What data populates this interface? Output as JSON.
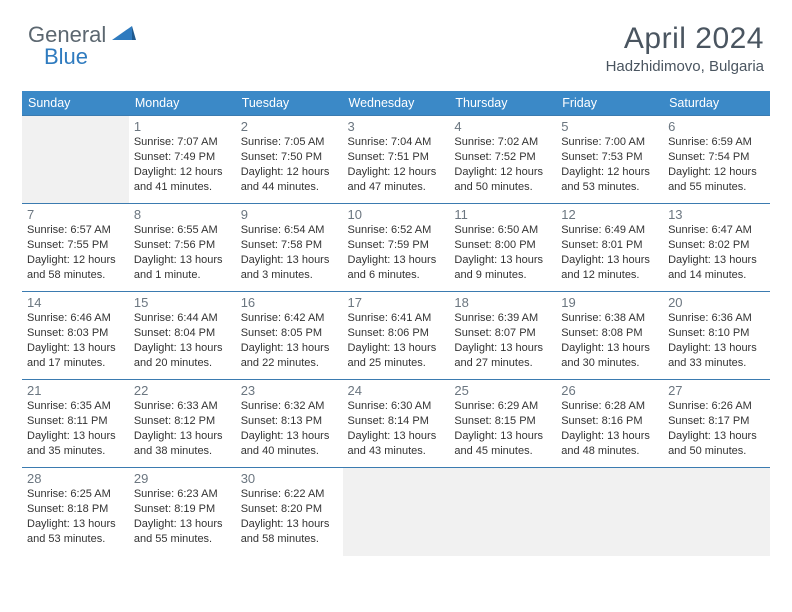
{
  "brand": {
    "part1": "General",
    "part2": "Blue"
  },
  "title": "April 2024",
  "location": "Hadzhidimovo, Bulgaria",
  "colors": {
    "header_bg": "#3b89c7",
    "border": "#3b7bb0",
    "off_bg": "#f1f1f1",
    "text": "#333333",
    "title_color": "#4a5560",
    "logo_gray": "#5c6770",
    "logo_blue": "#2f7bbf"
  },
  "weekdays": [
    "Sunday",
    "Monday",
    "Tuesday",
    "Wednesday",
    "Thursday",
    "Friday",
    "Saturday"
  ],
  "cells": [
    {
      "off": true
    },
    {
      "n": "1",
      "sr": "Sunrise: 7:07 AM",
      "ss": "Sunset: 7:49 PM",
      "d1": "Daylight: 12 hours",
      "d2": "and 41 minutes."
    },
    {
      "n": "2",
      "sr": "Sunrise: 7:05 AM",
      "ss": "Sunset: 7:50 PM",
      "d1": "Daylight: 12 hours",
      "d2": "and 44 minutes."
    },
    {
      "n": "3",
      "sr": "Sunrise: 7:04 AM",
      "ss": "Sunset: 7:51 PM",
      "d1": "Daylight: 12 hours",
      "d2": "and 47 minutes."
    },
    {
      "n": "4",
      "sr": "Sunrise: 7:02 AM",
      "ss": "Sunset: 7:52 PM",
      "d1": "Daylight: 12 hours",
      "d2": "and 50 minutes."
    },
    {
      "n": "5",
      "sr": "Sunrise: 7:00 AM",
      "ss": "Sunset: 7:53 PM",
      "d1": "Daylight: 12 hours",
      "d2": "and 53 minutes."
    },
    {
      "n": "6",
      "sr": "Sunrise: 6:59 AM",
      "ss": "Sunset: 7:54 PM",
      "d1": "Daylight: 12 hours",
      "d2": "and 55 minutes."
    },
    {
      "n": "7",
      "sr": "Sunrise: 6:57 AM",
      "ss": "Sunset: 7:55 PM",
      "d1": "Daylight: 12 hours",
      "d2": "and 58 minutes."
    },
    {
      "n": "8",
      "sr": "Sunrise: 6:55 AM",
      "ss": "Sunset: 7:56 PM",
      "d1": "Daylight: 13 hours",
      "d2": "and 1 minute."
    },
    {
      "n": "9",
      "sr": "Sunrise: 6:54 AM",
      "ss": "Sunset: 7:58 PM",
      "d1": "Daylight: 13 hours",
      "d2": "and 3 minutes."
    },
    {
      "n": "10",
      "sr": "Sunrise: 6:52 AM",
      "ss": "Sunset: 7:59 PM",
      "d1": "Daylight: 13 hours",
      "d2": "and 6 minutes."
    },
    {
      "n": "11",
      "sr": "Sunrise: 6:50 AM",
      "ss": "Sunset: 8:00 PM",
      "d1": "Daylight: 13 hours",
      "d2": "and 9 minutes."
    },
    {
      "n": "12",
      "sr": "Sunrise: 6:49 AM",
      "ss": "Sunset: 8:01 PM",
      "d1": "Daylight: 13 hours",
      "d2": "and 12 minutes."
    },
    {
      "n": "13",
      "sr": "Sunrise: 6:47 AM",
      "ss": "Sunset: 8:02 PM",
      "d1": "Daylight: 13 hours",
      "d2": "and 14 minutes."
    },
    {
      "n": "14",
      "sr": "Sunrise: 6:46 AM",
      "ss": "Sunset: 8:03 PM",
      "d1": "Daylight: 13 hours",
      "d2": "and 17 minutes."
    },
    {
      "n": "15",
      "sr": "Sunrise: 6:44 AM",
      "ss": "Sunset: 8:04 PM",
      "d1": "Daylight: 13 hours",
      "d2": "and 20 minutes."
    },
    {
      "n": "16",
      "sr": "Sunrise: 6:42 AM",
      "ss": "Sunset: 8:05 PM",
      "d1": "Daylight: 13 hours",
      "d2": "and 22 minutes."
    },
    {
      "n": "17",
      "sr": "Sunrise: 6:41 AM",
      "ss": "Sunset: 8:06 PM",
      "d1": "Daylight: 13 hours",
      "d2": "and 25 minutes."
    },
    {
      "n": "18",
      "sr": "Sunrise: 6:39 AM",
      "ss": "Sunset: 8:07 PM",
      "d1": "Daylight: 13 hours",
      "d2": "and 27 minutes."
    },
    {
      "n": "19",
      "sr": "Sunrise: 6:38 AM",
      "ss": "Sunset: 8:08 PM",
      "d1": "Daylight: 13 hours",
      "d2": "and 30 minutes."
    },
    {
      "n": "20",
      "sr": "Sunrise: 6:36 AM",
      "ss": "Sunset: 8:10 PM",
      "d1": "Daylight: 13 hours",
      "d2": "and 33 minutes."
    },
    {
      "n": "21",
      "sr": "Sunrise: 6:35 AM",
      "ss": "Sunset: 8:11 PM",
      "d1": "Daylight: 13 hours",
      "d2": "and 35 minutes."
    },
    {
      "n": "22",
      "sr": "Sunrise: 6:33 AM",
      "ss": "Sunset: 8:12 PM",
      "d1": "Daylight: 13 hours",
      "d2": "and 38 minutes."
    },
    {
      "n": "23",
      "sr": "Sunrise: 6:32 AM",
      "ss": "Sunset: 8:13 PM",
      "d1": "Daylight: 13 hours",
      "d2": "and 40 minutes."
    },
    {
      "n": "24",
      "sr": "Sunrise: 6:30 AM",
      "ss": "Sunset: 8:14 PM",
      "d1": "Daylight: 13 hours",
      "d2": "and 43 minutes."
    },
    {
      "n": "25",
      "sr": "Sunrise: 6:29 AM",
      "ss": "Sunset: 8:15 PM",
      "d1": "Daylight: 13 hours",
      "d2": "and 45 minutes."
    },
    {
      "n": "26",
      "sr": "Sunrise: 6:28 AM",
      "ss": "Sunset: 8:16 PM",
      "d1": "Daylight: 13 hours",
      "d2": "and 48 minutes."
    },
    {
      "n": "27",
      "sr": "Sunrise: 6:26 AM",
      "ss": "Sunset: 8:17 PM",
      "d1": "Daylight: 13 hours",
      "d2": "and 50 minutes."
    },
    {
      "n": "28",
      "sr": "Sunrise: 6:25 AM",
      "ss": "Sunset: 8:18 PM",
      "d1": "Daylight: 13 hours",
      "d2": "and 53 minutes."
    },
    {
      "n": "29",
      "sr": "Sunrise: 6:23 AM",
      "ss": "Sunset: 8:19 PM",
      "d1": "Daylight: 13 hours",
      "d2": "and 55 minutes."
    },
    {
      "n": "30",
      "sr": "Sunrise: 6:22 AM",
      "ss": "Sunset: 8:20 PM",
      "d1": "Daylight: 13 hours",
      "d2": "and 58 minutes."
    },
    {
      "off": true
    },
    {
      "off": true
    },
    {
      "off": true
    },
    {
      "off": true
    }
  ]
}
